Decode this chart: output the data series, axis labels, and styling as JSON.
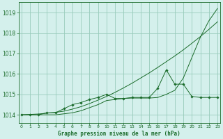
{
  "title": "Graphe pression niveau de la mer (hPa)",
  "bg_color": "#d4f0ec",
  "grid_color": "#99ccbb",
  "line_color": "#1a6b2a",
  "x_ticks": [
    0,
    1,
    2,
    3,
    4,
    5,
    6,
    7,
    8,
    9,
    10,
    11,
    12,
    13,
    14,
    15,
    16,
    17,
    18,
    19,
    20,
    21,
    22,
    23
  ],
  "x_labels": [
    "0",
    "1",
    "2",
    "3",
    "4",
    "5",
    "6",
    "7",
    "8",
    "9",
    "10",
    "11",
    "12",
    "13",
    "14",
    "15",
    "16",
    "17",
    "18",
    "19",
    "20",
    "21",
    "22",
    "23"
  ],
  "y_ticks": [
    1014,
    1015,
    1016,
    1017,
    1018,
    1019
  ],
  "ylim": [
    1013.6,
    1019.5
  ],
  "xlim": [
    -0.3,
    23.3
  ],
  "series_markers": [
    1014.0,
    1014.0,
    1014.0,
    1014.1,
    1014.1,
    1014.3,
    1014.5,
    1014.6,
    1014.75,
    1014.85,
    1015.0,
    1014.8,
    1014.8,
    1014.85,
    1014.85,
    1014.85,
    1015.3,
    1016.2,
    1015.5,
    1015.5,
    1014.9,
    1014.85,
    1014.85,
    1014.85
  ],
  "series_smooth1": [
    1014.0,
    1014.02,
    1014.04,
    1014.08,
    1014.12,
    1014.18,
    1014.28,
    1014.4,
    1014.55,
    1014.72,
    1014.9,
    1015.1,
    1015.32,
    1015.55,
    1015.8,
    1016.05,
    1016.32,
    1016.6,
    1016.88,
    1017.18,
    1017.5,
    1017.83,
    1018.18,
    1018.55
  ],
  "series_smooth2": [
    1014.0,
    1014.0,
    1014.0,
    1014.0,
    1014.0,
    1014.05,
    1014.1,
    1014.2,
    1014.35,
    1014.5,
    1014.7,
    1014.75,
    1014.8,
    1014.82,
    1014.82,
    1014.82,
    1014.85,
    1015.0,
    1015.2,
    1015.8,
    1016.8,
    1017.8,
    1018.6,
    1019.2
  ]
}
